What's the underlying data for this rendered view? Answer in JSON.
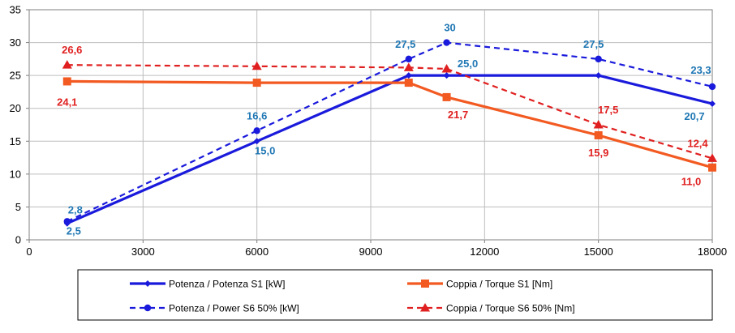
{
  "chart_data": {
    "type": "line",
    "title": "",
    "xlabel": "",
    "ylabel": "",
    "xlim": [
      0,
      18000
    ],
    "ylim": [
      0,
      35
    ],
    "x_ticks": [
      "0",
      "3000",
      "6000",
      "9000",
      "12000",
      "15000",
      "18000"
    ],
    "y_ticks": [
      "0",
      "5",
      "10",
      "15",
      "20",
      "25",
      "30",
      "35"
    ],
    "grid": true,
    "legend_position": "bottom",
    "series": [
      {
        "name": "Potenza / Potenza S1 [kW]",
        "color": "#1a1adc",
        "dash": false,
        "marker": "diamond",
        "points": [
          {
            "x": 1000,
            "y": 2.5,
            "label": "2,5"
          },
          {
            "x": 6000,
            "y": 15.0,
            "label": "15,0"
          },
          {
            "x": 10000,
            "y": 25.0,
            "label": ""
          },
          {
            "x": 11000,
            "y": 25.0,
            "label": "25,0"
          },
          {
            "x": 15000,
            "y": 25.0,
            "label": ""
          },
          {
            "x": 18000,
            "y": 20.7,
            "label": "20,7"
          }
        ]
      },
      {
        "name": "Coppia / Torque S1 [Nm]",
        "color": "#f25a22",
        "dash": false,
        "marker": "square",
        "points": [
          {
            "x": 1000,
            "y": 24.1,
            "label": "24,1"
          },
          {
            "x": 6000,
            "y": 23.9,
            "label": ""
          },
          {
            "x": 10000,
            "y": 23.9,
            "label": ""
          },
          {
            "x": 11000,
            "y": 21.7,
            "label": "21,7"
          },
          {
            "x": 15000,
            "y": 15.9,
            "label": "15,9"
          },
          {
            "x": 18000,
            "y": 11.0,
            "label": "11,0"
          }
        ]
      },
      {
        "name": "Potenza / Power S6 50% [kW]",
        "color": "#1a1adc",
        "dash": true,
        "marker": "circle",
        "points": [
          {
            "x": 1000,
            "y": 2.8,
            "label": "2,8"
          },
          {
            "x": 6000,
            "y": 16.6,
            "label": "16,6"
          },
          {
            "x": 10000,
            "y": 27.5,
            "label": "27,5"
          },
          {
            "x": 11000,
            "y": 30.0,
            "label": "30"
          },
          {
            "x": 15000,
            "y": 27.5,
            "label": "27,5"
          },
          {
            "x": 18000,
            "y": 23.3,
            "label": "23,3"
          }
        ]
      },
      {
        "name": "Coppia / Torque S6 50% [Nm]",
        "color": "#e02020",
        "dash": true,
        "marker": "triangle",
        "points": [
          {
            "x": 1000,
            "y": 26.6,
            "label": "26,6"
          },
          {
            "x": 6000,
            "y": 26.4,
            "label": ""
          },
          {
            "x": 10000,
            "y": 26.2,
            "label": ""
          },
          {
            "x": 11000,
            "y": 26.0,
            "label": ""
          },
          {
            "x": 15000,
            "y": 17.5,
            "label": "17,5"
          },
          {
            "x": 18000,
            "y": 12.4,
            "label": "12,4"
          }
        ]
      }
    ],
    "label_colors": {
      "blue_series": "#1f77b4",
      "red_series": "#e02020"
    }
  }
}
